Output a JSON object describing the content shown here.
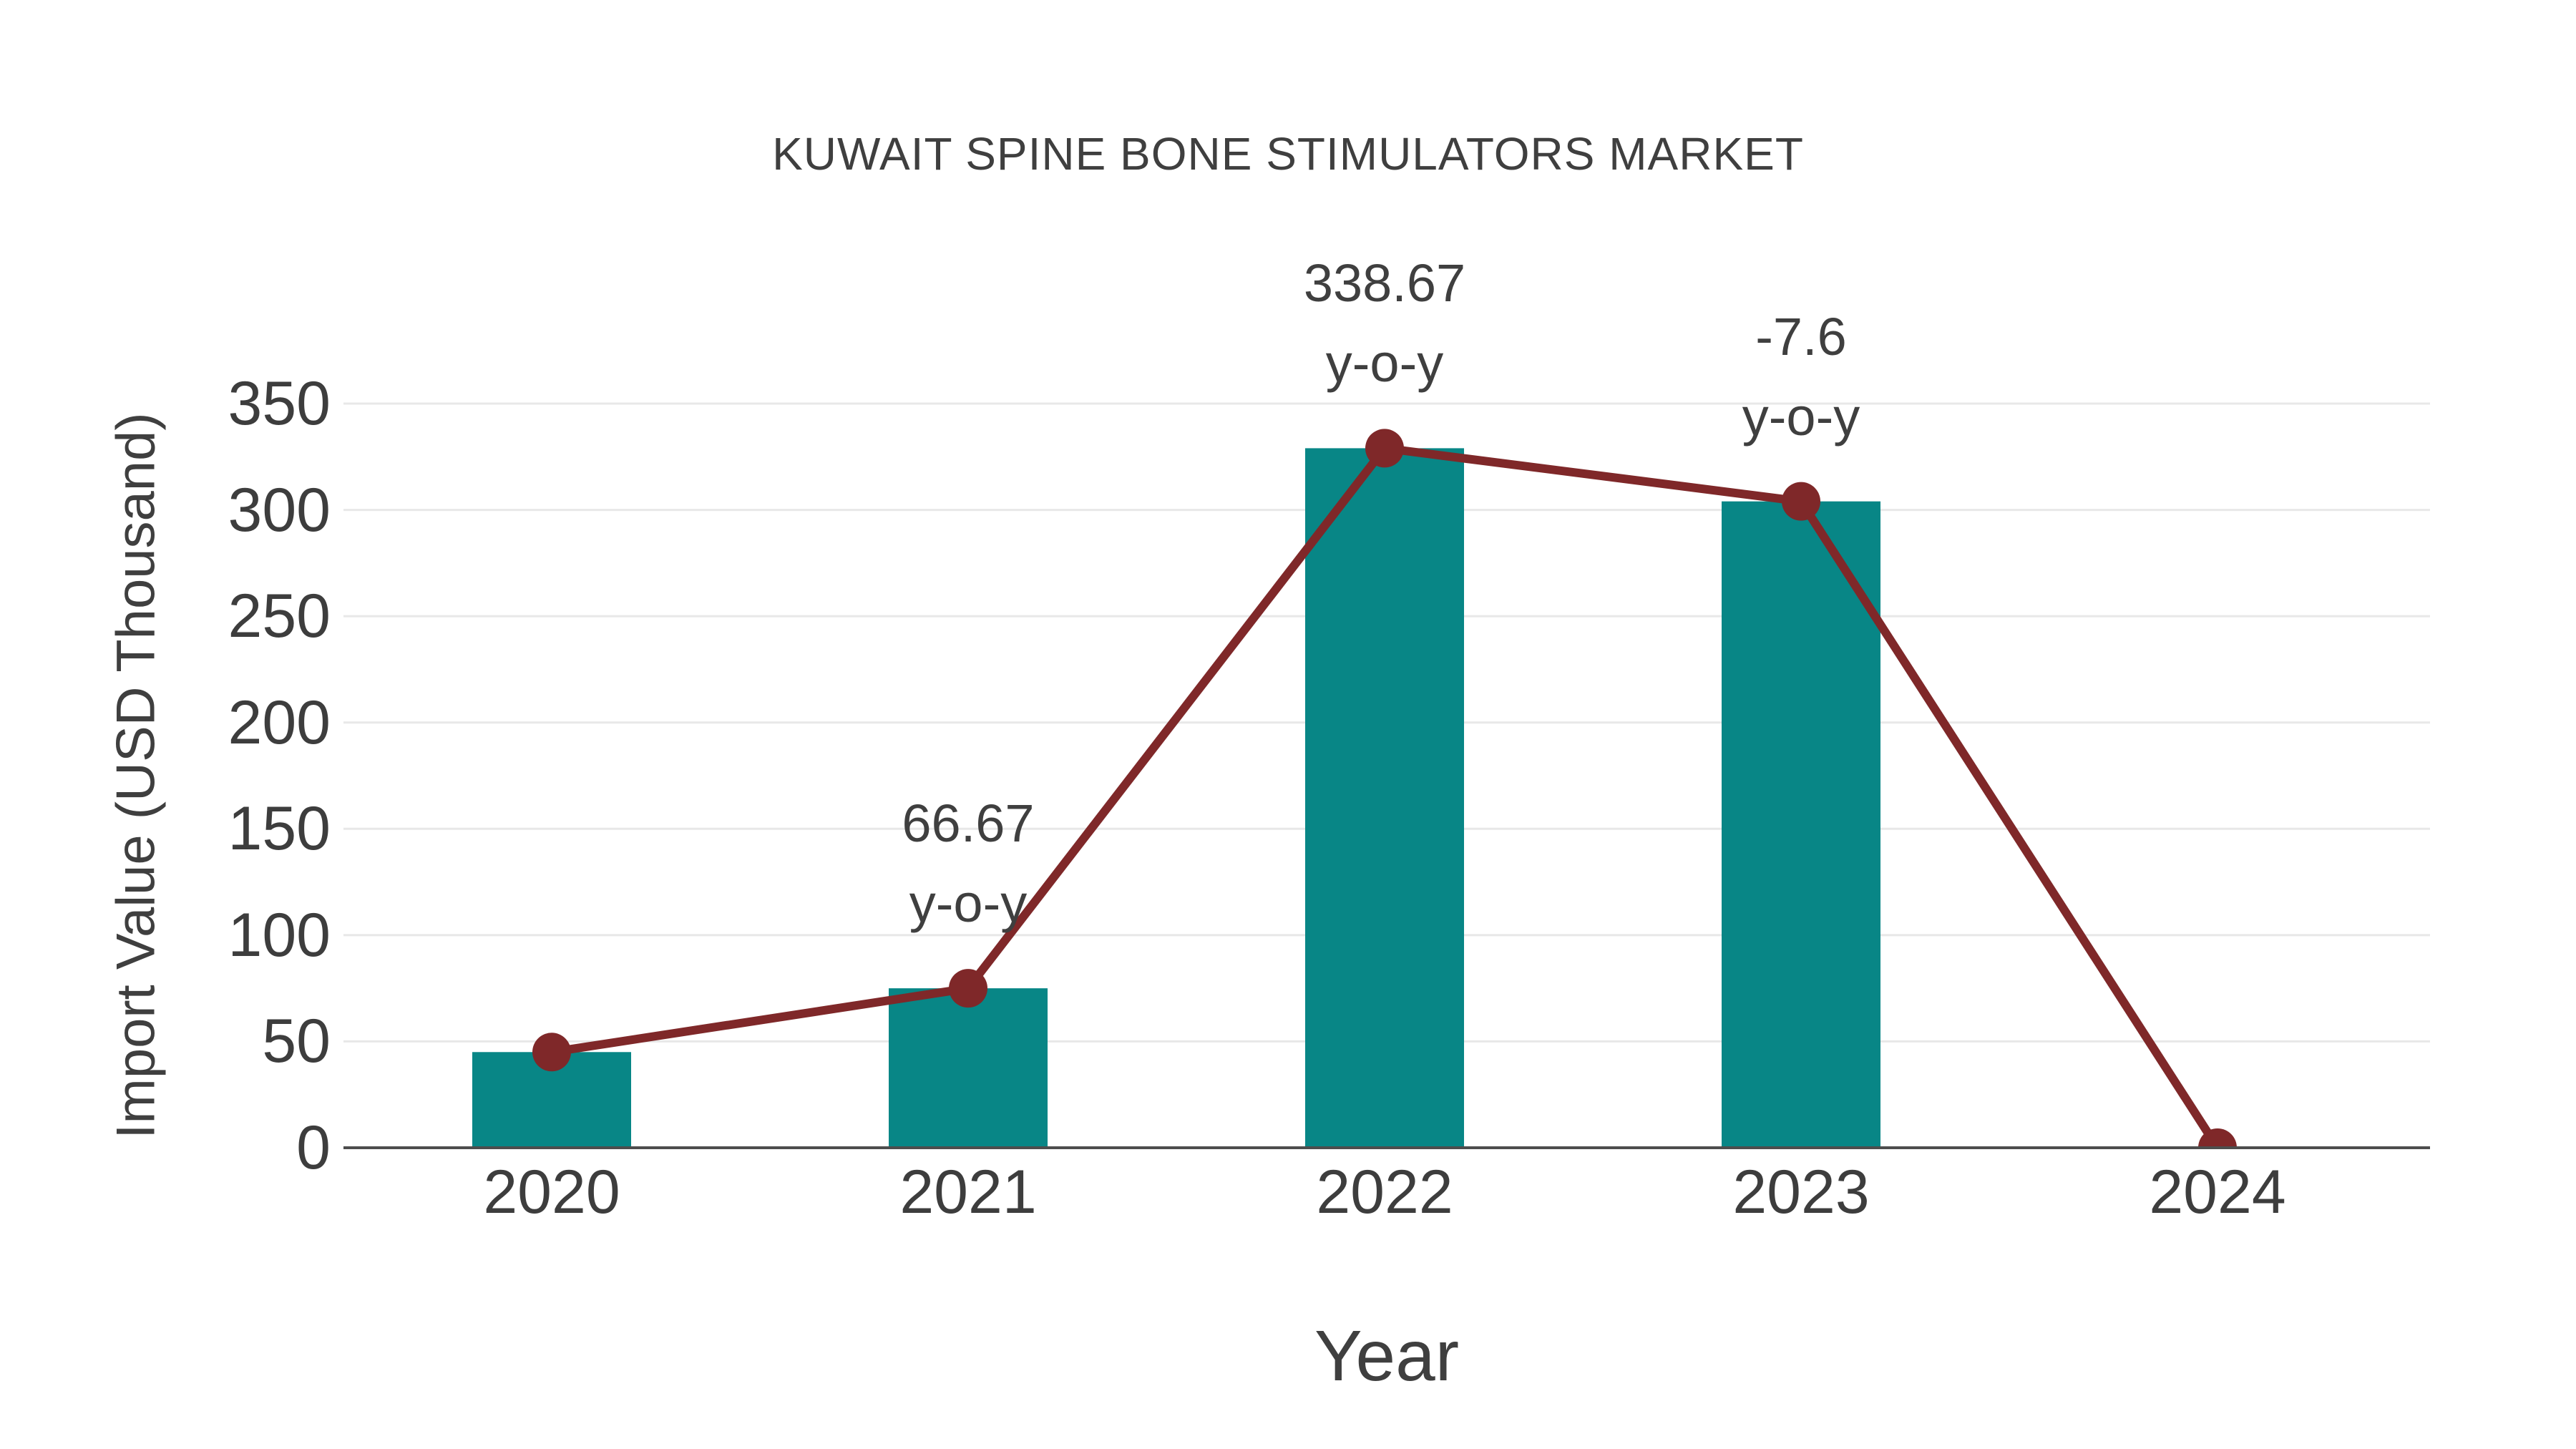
{
  "chart_data": {
    "type": "bar",
    "subtype": "bar-with-trend-line",
    "title": "KUWAIT SPINE BONE STIMULATORS MARKET",
    "xlabel": "Year",
    "ylabel": "Import Value (USD Thousand)",
    "categories": [
      "2020",
      "2021",
      "2022",
      "2023",
      "2024"
    ],
    "series": [
      {
        "name": "Import Value bars",
        "type": "bar",
        "values": [
          45,
          75,
          329,
          304,
          0
        ]
      },
      {
        "name": "Import Value trend line",
        "type": "line",
        "values": [
          45,
          75,
          329,
          304,
          0
        ]
      }
    ],
    "annotations": [
      {
        "category": "2021",
        "value_label": "66.67",
        "suffix_label": "y-o-y"
      },
      {
        "category": "2022",
        "value_label": "338.67",
        "suffix_label": "y-o-y"
      },
      {
        "category": "2023",
        "value_label": "-7.6",
        "suffix_label": "y-o-y"
      }
    ],
    "yticks": [
      0,
      50,
      100,
      150,
      200,
      250,
      300,
      350
    ],
    "ylim": [
      0,
      350
    ],
    "grid": true,
    "legend_position": "none",
    "colors": {
      "bar": "#088686",
      "line": "#7f2829",
      "marker": "#7f2829",
      "text": "#3f3f3f",
      "tick_text": "#3d3d3d",
      "gridline": "#e8e8e8",
      "axis_line": "#4d4d4d",
      "background": "#ffffff"
    }
  }
}
